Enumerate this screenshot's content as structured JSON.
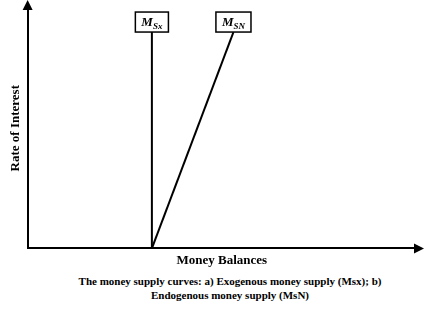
{
  "chart_data": {
    "type": "line",
    "x_label": "Money Balances",
    "y_label": "Rate of Interest",
    "caption": "The money supply curves: a) Exogenous money supply (Msx); b) Endogenous money supply (MsN)",
    "xlim": [
      0,
      100
    ],
    "ylim": [
      0,
      100
    ],
    "tick_labels": false,
    "grid": false,
    "series": [
      {
        "name": "MSx",
        "color": "#000000",
        "x": [
          32,
          32
        ],
        "values": [
          0,
          90
        ]
      },
      {
        "name": "MSN",
        "color": "#000000",
        "x": [
          32,
          53
        ],
        "values": [
          0,
          90
        ]
      }
    ]
  }
}
